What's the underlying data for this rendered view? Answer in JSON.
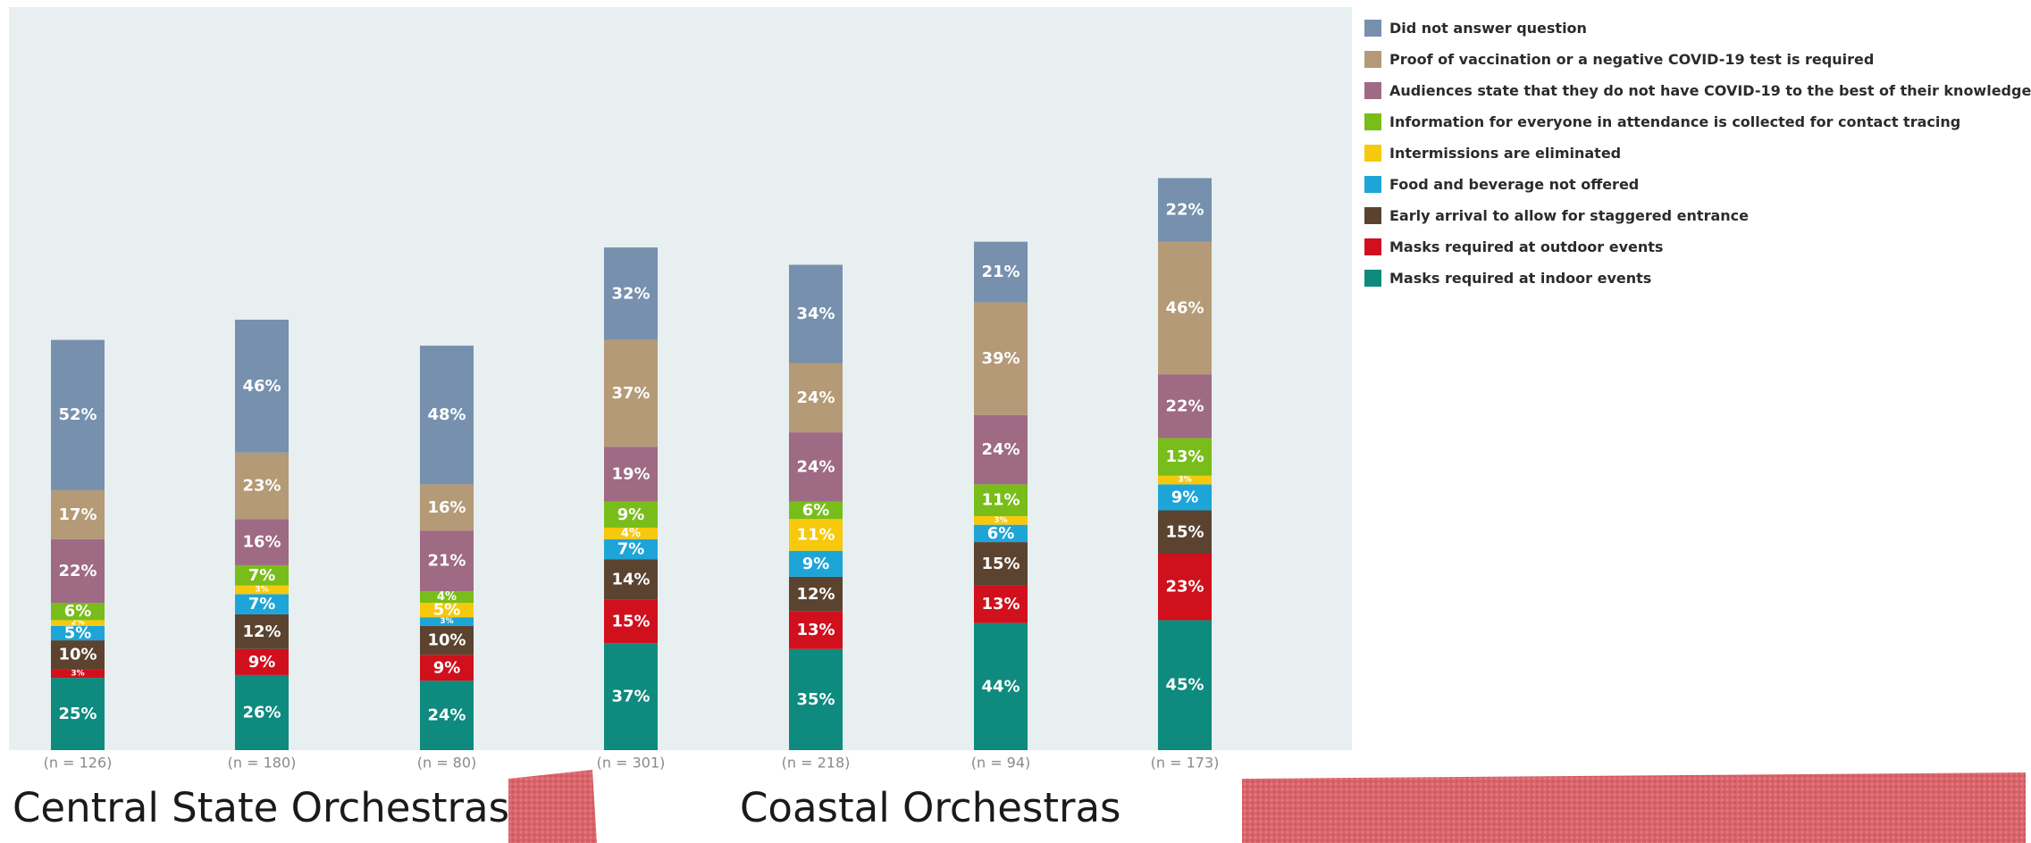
{
  "chart_data": {
    "type": "bar",
    "stacked": true,
    "categories": [
      "(n = 126)",
      "(n = 180)",
      "(n = 80)",
      "(n = 301)",
      "(n = 218)",
      "(n = 94)",
      "(n = 173)"
    ],
    "groups": [
      {
        "label": "Central State Orchestras"
      },
      {
        "label": "Coastal Orchestras"
      }
    ],
    "series": [
      {
        "name": "Masks required at indoor events",
        "color": "#0e8a7e",
        "values": [
          25,
          26,
          24,
          37,
          35,
          44,
          45
        ]
      },
      {
        "name": "Masks required at outdoor events",
        "color": "#d0101c",
        "values": [
          3,
          9,
          9,
          15,
          13,
          13,
          23
        ]
      },
      {
        "name": "Early arrival to allow for staggered entrance",
        "color": "#5b4330",
        "values": [
          10,
          12,
          10,
          14,
          12,
          15,
          15
        ]
      },
      {
        "name": "Food and beverage not offered",
        "color": "#1ea5d8",
        "values": [
          5,
          7,
          3,
          7,
          9,
          6,
          9
        ]
      },
      {
        "name": "Intermissions are eliminated",
        "color": "#f7c90c",
        "values": [
          2,
          3,
          5,
          4,
          11,
          3,
          3
        ]
      },
      {
        "name": "Information for everyone in attendance is collected for contact tracing",
        "color": "#79bd1a",
        "values": [
          6,
          7,
          4,
          9,
          6,
          11,
          13
        ]
      },
      {
        "name": "Audiences state that they do not have COVID-19 to the best of their knowledge",
        "color": "#9e6a84",
        "values": [
          22,
          16,
          21,
          19,
          24,
          24,
          22
        ]
      },
      {
        "name": "Proof of vaccination or a negative COVID-19 test is required",
        "color": "#b49a76",
        "values": [
          17,
          23,
          16,
          37,
          24,
          39,
          46
        ]
      },
      {
        "name": "Did not answer question",
        "color": "#7690ae",
        "values": [
          52,
          46,
          48,
          32,
          34,
          21,
          22
        ]
      }
    ],
    "legend_order": [
      8,
      7,
      6,
      5,
      4,
      3,
      2,
      1,
      0
    ],
    "legend_position": "right",
    "grid": false,
    "plot_background": "#e8eff1"
  },
  "group_labels": {
    "central": "Central State Orchestras",
    "coastal": "Coastal Orchestras"
  },
  "legend": [
    {
      "label": "Did not answer question",
      "color": "#7690ae"
    },
    {
      "label": "Proof of vaccination or a negative COVID-19 test is required",
      "color": "#b49a76"
    },
    {
      "label": "Audiences state that they do not have COVID-19 to the best of their knowledge",
      "color": "#9e6a84"
    },
    {
      "label": "Information for everyone in attendance is collected for contact tracing",
      "color": "#79bd1a"
    },
    {
      "label": "Intermissions are eliminated",
      "color": "#f7c90c"
    },
    {
      "label": "Food and beverage not offered",
      "color": "#1ea5d8"
    },
    {
      "label": "Early arrival to allow for staggered entrance",
      "color": "#5b4330"
    },
    {
      "label": "Masks required at outdoor events",
      "color": "#d0101c"
    },
    {
      "label": "Masks required at indoor events",
      "color": "#0e8a7e"
    }
  ]
}
